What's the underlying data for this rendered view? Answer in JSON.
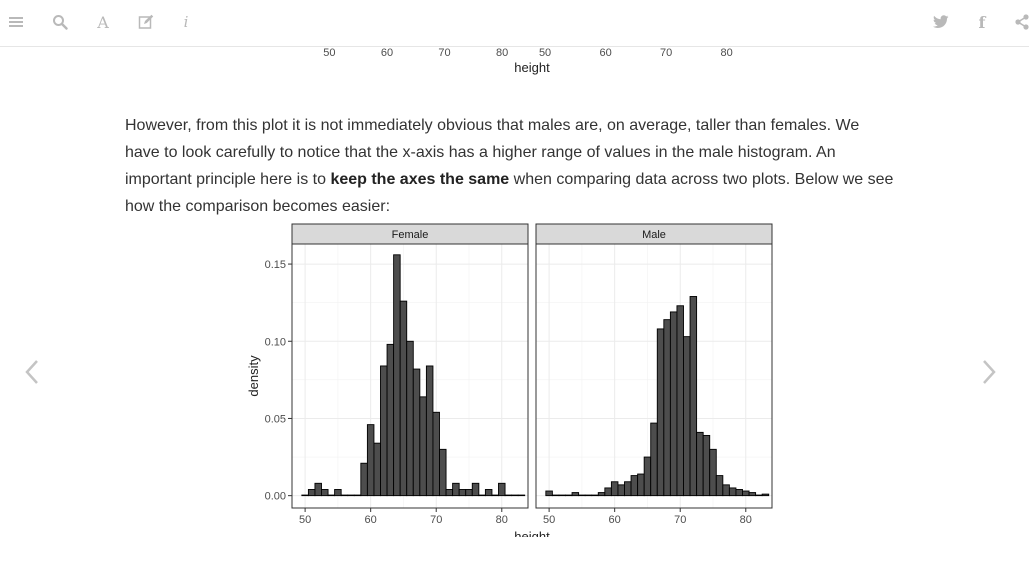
{
  "toolbar": {
    "left_buttons": [
      {
        "name": "menu-icon"
      },
      {
        "name": "search-icon"
      },
      {
        "name": "font-settings-icon",
        "glyph": "A"
      },
      {
        "name": "edit-icon"
      },
      {
        "name": "info-icon",
        "glyph": "i"
      }
    ],
    "right_buttons": [
      {
        "name": "twitter-icon"
      },
      {
        "name": "facebook-icon",
        "glyph": "f"
      },
      {
        "name": "share-icon"
      }
    ],
    "icon_color": "#b9b9b9"
  },
  "paragraph": {
    "part1": "However, from this plot it is not immediately obvious that males are, on average, taller than females. We have to look carefully to notice that the x-axis has a higher range of values in the male histogram. An important principle here is to ",
    "bold": "keep the axes the same",
    "part2": " when comparing data across two plots. Below we see how the comparison becomes easier:"
  },
  "navigation": {
    "prev": "chevron-left-icon",
    "next": "chevron-right-icon"
  },
  "chart_data": [
    {
      "type": "bar",
      "note": "bottom edge of previous (partially visible) faceted histogram",
      "facets": [
        {
          "xticks": [
            50,
            60,
            70,
            80
          ]
        },
        {
          "xticks": [
            50,
            60,
            70,
            80
          ]
        }
      ],
      "xlabel": "height"
    },
    {
      "type": "bar",
      "facets": [
        {
          "name": "Female",
          "bin_width": 1,
          "x": [
            50,
            51,
            52,
            53,
            54,
            55,
            56,
            57,
            58,
            59,
            60,
            61,
            62,
            63,
            64,
            65,
            66,
            67,
            68,
            69,
            70,
            71,
            72,
            73,
            74,
            75,
            76,
            77,
            78,
            79,
            80,
            81,
            82,
            83
          ],
          "values": [
            0.0,
            0.004,
            0.008,
            0.004,
            0.0,
            0.004,
            0.0,
            0.0,
            0.0,
            0.021,
            0.046,
            0.034,
            0.084,
            0.098,
            0.156,
            0.126,
            0.1,
            0.082,
            0.064,
            0.084,
            0.054,
            0.03,
            0.004,
            0.008,
            0.004,
            0.004,
            0.008,
            0.0,
            0.004,
            0.0,
            0.008,
            0.0,
            0.0,
            0.0
          ]
        },
        {
          "name": "Male",
          "bin_width": 1,
          "x": [
            50,
            51,
            52,
            53,
            54,
            55,
            56,
            57,
            58,
            59,
            60,
            61,
            62,
            63,
            64,
            65,
            66,
            67,
            68,
            69,
            70,
            71,
            72,
            73,
            74,
            75,
            76,
            77,
            78,
            79,
            80,
            81,
            82,
            83
          ],
          "values": [
            0.003,
            0.0,
            0.0,
            0.0,
            0.002,
            0.0,
            0.0,
            0.0,
            0.002,
            0.005,
            0.009,
            0.007,
            0.009,
            0.013,
            0.014,
            0.025,
            0.047,
            0.108,
            0.114,
            0.119,
            0.123,
            0.103,
            0.129,
            0.041,
            0.039,
            0.03,
            0.013,
            0.007,
            0.005,
            0.004,
            0.003,
            0.002,
            0.0,
            0.001
          ]
        }
      ],
      "xlabel": "height",
      "ylabel": "density",
      "xlim": [
        48,
        84
      ],
      "ylim": [
        -0.008,
        0.163
      ],
      "xticks": [
        50,
        60,
        70,
        80
      ],
      "yticks": [
        0.0,
        0.05,
        0.1,
        0.15
      ],
      "yticklabels": [
        "0.00",
        "0.05",
        "0.10",
        "0.15"
      ],
      "grid": true,
      "theme": "bw",
      "bar_fill": "#4d4d4d",
      "bar_outline": "#000000",
      "strip_fill": "#d9d9d9"
    }
  ]
}
